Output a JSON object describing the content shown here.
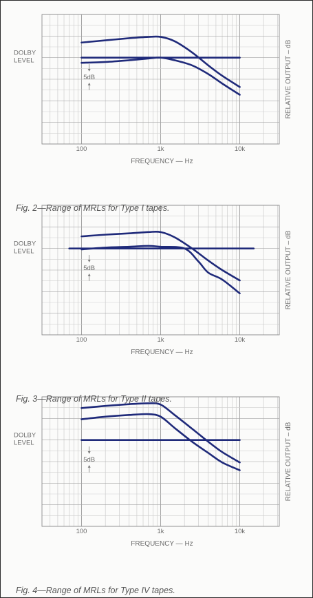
{
  "figures": [
    {
      "caption": "Fig. 2—Range of MRLs for Type I tapes."
    },
    {
      "caption": "Fig. 3—Range of MRLs for Type II tapes."
    },
    {
      "caption": "Fig. 4—Range of MRLs for Type IV tapes."
    }
  ],
  "chart_data": [
    {
      "type": "line",
      "xscale": "log",
      "xlim": [
        31.6,
        31600
      ],
      "ylim": [
        -20,
        10
      ],
      "x_ticks": [
        100,
        1000,
        10000
      ],
      "x_tick_labels": [
        "100",
        "1k",
        "10k"
      ],
      "xlabel": "FREQUENCY — Hz",
      "ylabel": "RELATIVE OUTPUT – dB",
      "reference_label": "DOLBY LEVEL",
      "scale_marker": "5dB",
      "grid": true,
      "color": "#1f2a7a",
      "series": [
        {
          "x": [
            100,
            200,
            400,
            700,
            1000,
            1500,
            2500,
            4000,
            6000,
            10000
          ],
          "y": [
            3.5,
            4.0,
            4.5,
            4.8,
            4.8,
            3.8,
            1.2,
            -1.8,
            -4.2,
            -6.8
          ]
        },
        {
          "x": [
            100,
            10000
          ],
          "y": [
            0,
            0
          ]
        },
        {
          "x": [
            100,
            200,
            400,
            700,
            1000,
            1500,
            2500,
            4000,
            6000,
            10000
          ],
          "y": [
            -1.2,
            -1.0,
            -0.6,
            -0.2,
            0.0,
            -0.6,
            -1.8,
            -3.8,
            -6.0,
            -8.6
          ]
        }
      ]
    },
    {
      "type": "line",
      "xscale": "log",
      "xlim": [
        31.6,
        31600
      ],
      "ylim": [
        -20,
        10
      ],
      "x_ticks": [
        100,
        1000,
        10000
      ],
      "x_tick_labels": [
        "100",
        "1k",
        "10k"
      ],
      "xlabel": "FREQUENCY — Hz",
      "ylabel": "RELATIVE OUTPUT – dB",
      "reference_label": "DOLBY LEVEL",
      "scale_marker": "5dB",
      "grid": true,
      "color": "#1f2a7a",
      "series": [
        {
          "x": [
            100,
            200,
            400,
            700,
            1000,
            1500,
            2500,
            4000,
            6000,
            10000
          ],
          "y": [
            2.8,
            3.2,
            3.5,
            3.8,
            3.8,
            2.6,
            0.0,
            -2.8,
            -5.0,
            -7.4
          ]
        },
        {
          "x": [
            70,
            15000
          ],
          "y": [
            0,
            0
          ]
        },
        {
          "x": [
            100,
            200,
            400,
            700,
            1000,
            2000,
            3000,
            4000,
            6000,
            10000
          ],
          "y": [
            -0.2,
            0.2,
            0.4,
            0.6,
            0.4,
            0.0,
            -3.0,
            -5.6,
            -7.2,
            -10.4
          ]
        }
      ]
    },
    {
      "type": "line",
      "xscale": "log",
      "xlim": [
        31.6,
        31600
      ],
      "ylim": [
        -20,
        10
      ],
      "x_ticks": [
        100,
        1000,
        10000
      ],
      "x_tick_labels": [
        "100",
        "1k",
        "10k"
      ],
      "xlabel": "FREQUENCY — Hz",
      "ylabel": "RELATIVE OUTPUT – dB",
      "reference_label": "DOLBY LEVEL",
      "scale_marker": "5dB",
      "grid": true,
      "color": "#1f2a7a",
      "series": [
        {
          "x": [
            100,
            200,
            400,
            700,
            1000,
            1500,
            2500,
            4000,
            6000,
            10000
          ],
          "y": [
            7.4,
            7.9,
            8.3,
            8.5,
            8.2,
            5.8,
            2.6,
            -0.4,
            -2.8,
            -5.2
          ]
        },
        {
          "x": [
            100,
            200,
            400,
            700,
            1000,
            1500,
            2500,
            4000,
            6000,
            10000
          ],
          "y": [
            4.8,
            5.4,
            5.8,
            6.0,
            5.4,
            2.8,
            -0.4,
            -3.0,
            -5.2,
            -7.0
          ]
        },
        {
          "x": [
            100,
            10000
          ],
          "y": [
            0,
            0
          ]
        }
      ]
    }
  ]
}
